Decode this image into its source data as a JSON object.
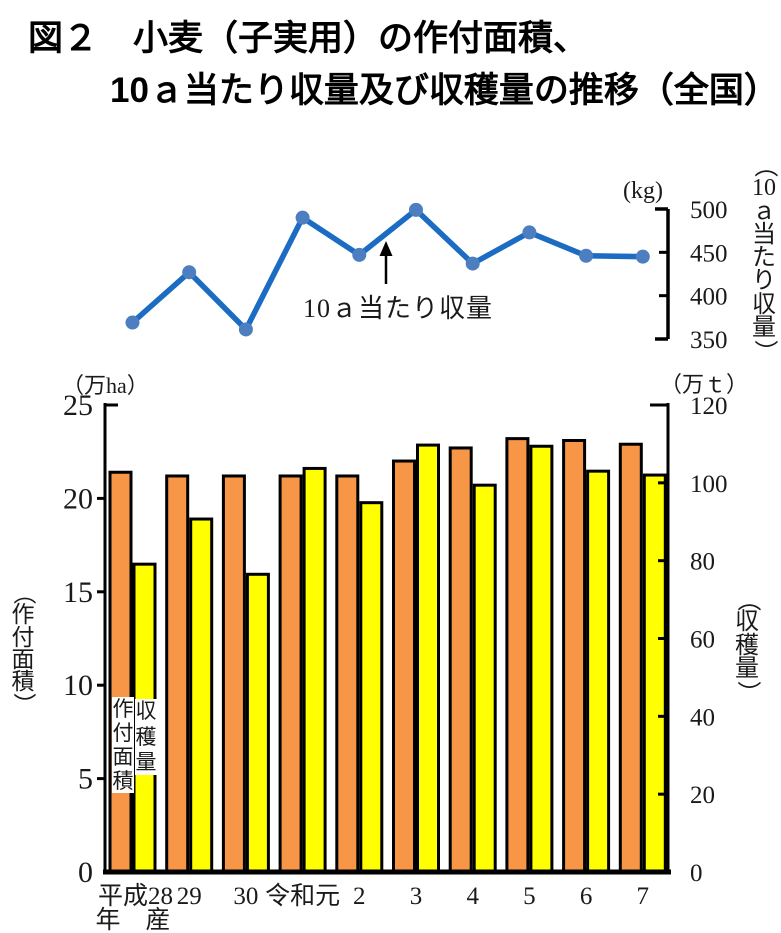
{
  "title": {
    "line1": "図２　小麦（子実用）の作付面積、",
    "line2": "10ａ当たり収量及び収穫量の推移（全国）"
  },
  "line_chart": {
    "unit_label": "(kg)",
    "axis_title": "（10ａ当たり収量）",
    "annotation": "10ａ当たり収量"
  },
  "bar_chart": {
    "left_unit_label": "（万ha）",
    "right_unit_label": "（万ｔ）",
    "left_axis_title": "（作付面積）",
    "right_axis_title": "（収穫量）",
    "area_inline_label": "作付面積",
    "harvest_inline_label": "収穫量"
  },
  "x_axis": {
    "labels": [
      "平成28",
      "29",
      "30",
      "令和元",
      "2",
      "3",
      "4",
      "5",
      "6",
      "7"
    ],
    "first_label_sub": "年　産"
  },
  "colors": {
    "area_bar": "#f79646",
    "harvest_bar": "#ffff00",
    "bar_border": "#000000",
    "line": "#1b6cc2",
    "marker": "#4d7ebf",
    "axis": "#000000",
    "text": "#1a1a1a"
  },
  "chart_data": [
    {
      "type": "line",
      "name": "10ａ当たり収量",
      "unit": "kg",
      "x": [
        "平成28",
        "29",
        "30",
        "令和元",
        "2",
        "3",
        "4",
        "5",
        "6",
        "7"
      ],
      "values": [
        369,
        427,
        361,
        490,
        447,
        499,
        437,
        473,
        446,
        445
      ],
      "ylim": [
        350,
        500
      ],
      "yticks": [
        350,
        400,
        450,
        500
      ],
      "legend_position": "annotation-arrow-on-plot",
      "grid": false
    },
    {
      "type": "bar",
      "categories": [
        "平成28",
        "29",
        "30",
        "令和元",
        "2",
        "3",
        "4",
        "5",
        "6",
        "7"
      ],
      "series": [
        {
          "name": "作付面積",
          "axis": "left",
          "unit": "万ha",
          "values": [
            21.4,
            21.2,
            21.2,
            21.2,
            21.2,
            22.0,
            22.7,
            23.2,
            23.1,
            22.9
          ]
        },
        {
          "name": "収穫量",
          "axis": "right",
          "unit": "万t",
          "values": [
            79.1,
            90.7,
            76.5,
            103.7,
            94.9,
            109.7,
            99.4,
            109.4,
            103.0,
            102.0
          ]
        }
      ],
      "left_ylim": [
        0,
        25
      ],
      "left_yticks": [
        0,
        5,
        10,
        15,
        20,
        25
      ],
      "right_ylim": [
        0,
        120
      ],
      "right_yticks": [
        0,
        20,
        40,
        60,
        80,
        100,
        120
      ],
      "grid": false
    }
  ]
}
